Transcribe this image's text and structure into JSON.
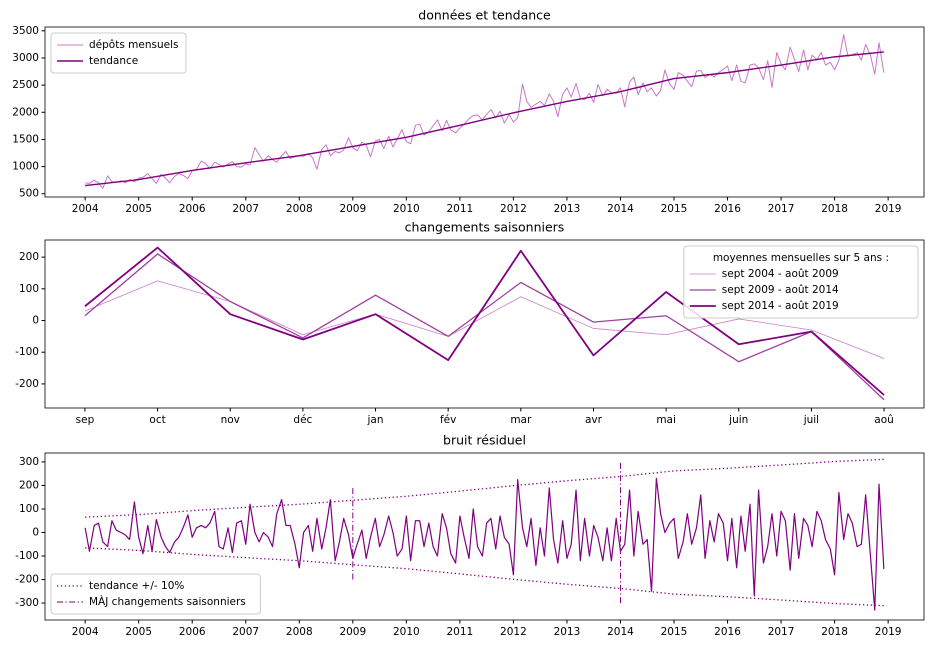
{
  "chart_data": [
    {
      "type": "line",
      "title": "données et tendance",
      "xlim": [
        2003.25,
        2019.67
      ],
      "ylim": [
        440,
        3570
      ],
      "xticks": [
        2004,
        2005,
        2006,
        2007,
        2008,
        2009,
        2010,
        2011,
        2012,
        2013,
        2014,
        2015,
        2016,
        2017,
        2018,
        2019
      ],
      "yticks": [
        500,
        1000,
        1500,
        2000,
        2500,
        3000,
        3500
      ],
      "grid": false,
      "legend": "upper left",
      "x": [
        2004,
        2004.08,
        2004.17,
        2004.25,
        2004.33,
        2004.42,
        2004.5,
        2004.58,
        2004.67,
        2004.75,
        2004.83,
        2004.92,
        2005,
        2005.08,
        2005.17,
        2005.25,
        2005.33,
        2005.42,
        2005.5,
        2005.58,
        2005.67,
        2005.75,
        2005.83,
        2005.92,
        2006,
        2006.08,
        2006.17,
        2006.25,
        2006.33,
        2006.42,
        2006.5,
        2006.58,
        2006.67,
        2006.75,
        2006.83,
        2006.92,
        2007,
        2007.08,
        2007.17,
        2007.25,
        2007.33,
        2007.42,
        2007.5,
        2007.58,
        2007.67,
        2007.75,
        2007.83,
        2007.92,
        2008,
        2008.08,
        2008.17,
        2008.25,
        2008.33,
        2008.42,
        2008.5,
        2008.58,
        2008.67,
        2008.75,
        2008.83,
        2008.92,
        2009,
        2009.08,
        2009.17,
        2009.25,
        2009.33,
        2009.42,
        2009.5,
        2009.58,
        2009.67,
        2009.75,
        2009.83,
        2009.92,
        2010,
        2010.08,
        2010.17,
        2010.25,
        2010.33,
        2010.42,
        2010.5,
        2010.58,
        2010.67,
        2010.75,
        2010.83,
        2010.92,
        2011,
        2011.08,
        2011.17,
        2011.25,
        2011.33,
        2011.42,
        2011.5,
        2011.58,
        2011.67,
        2011.75,
        2011.83,
        2011.92,
        2012,
        2012.08,
        2012.17,
        2012.25,
        2012.33,
        2012.42,
        2012.5,
        2012.58,
        2012.67,
        2012.75,
        2012.83,
        2012.92,
        2013,
        2013.08,
        2013.17,
        2013.25,
        2013.33,
        2013.42,
        2013.5,
        2013.58,
        2013.67,
        2013.75,
        2013.83,
        2013.92,
        2014,
        2014.08,
        2014.17,
        2014.25,
        2014.33,
        2014.42,
        2014.5,
        2014.58,
        2014.67,
        2014.75,
        2014.83,
        2014.92,
        2015,
        2015.08,
        2015.17,
        2015.25,
        2015.33,
        2015.42,
        2015.5,
        2015.58,
        2015.67,
        2015.75,
        2015.83,
        2015.92,
        2016,
        2016.08,
        2016.17,
        2016.25,
        2016.33,
        2016.42,
        2016.5,
        2016.58,
        2016.67,
        2016.75,
        2016.83,
        2016.92,
        2017,
        2017.08,
        2017.17,
        2017.25,
        2017.33,
        2017.42,
        2017.5,
        2017.58,
        2017.67,
        2017.75,
        2017.83,
        2017.92,
        2018,
        2018.08,
        2018.17,
        2018.25,
        2018.33,
        2018.42,
        2018.5,
        2018.58,
        2018.67,
        2018.75,
        2018.83,
        2018.92
      ],
      "series": [
        {
          "name": "dépôts mensuels",
          "color": "#c878c8",
          "values": [
            700,
            690,
            750,
            700,
            600,
            830,
            720,
            710,
            740,
            700,
            760,
            720,
            790,
            800,
            870,
            780,
            690,
            860,
            790,
            700,
            820,
            870,
            840,
            780,
            920,
            950,
            1100,
            1060,
            960,
            1080,
            1040,
            990,
            1050,
            1090,
            1000,
            990,
            1050,
            1030,
            1350,
            1220,
            1100,
            1200,
            1130,
            1080,
            1200,
            1280,
            1150,
            1180,
            1200,
            1190,
            1240,
            1160,
            950,
            1320,
            1400,
            1200,
            1280,
            1250,
            1310,
            1530,
            1350,
            1290,
            1450,
            1400,
            1180,
            1470,
            1500,
            1330,
            1560,
            1360,
            1510,
            1680,
            1460,
            1420,
            1760,
            1780,
            1580,
            1640,
            1750,
            1860,
            1660,
            1850,
            1680,
            1620,
            1710,
            1780,
            1880,
            1940,
            1950,
            1860,
            1960,
            2050,
            1900,
            2020,
            1800,
            1960,
            1820,
            1900,
            2520,
            2200,
            2090,
            2150,
            2200,
            2120,
            2340,
            2200,
            1920,
            2330,
            2450,
            2280,
            2530,
            2260,
            2230,
            2350,
            2180,
            2510,
            2300,
            2420,
            2360,
            2350,
            2450,
            2100,
            2560,
            2650,
            2320,
            2540,
            2380,
            2450,
            2300,
            2400,
            2780,
            2520,
            2420,
            2730,
            2680,
            2570,
            2470,
            2760,
            2770,
            2640,
            2700,
            2650,
            2730,
            2790,
            2850,
            2580,
            2870,
            2570,
            2540,
            2870,
            2890,
            2820,
            2600,
            2950,
            2460,
            3100,
            2890,
            2780,
            3200,
            2970,
            2750,
            3150,
            2780,
            3050,
            2970,
            3100,
            2870,
            2920,
            2780,
            2960,
            3430,
            3030,
            3060,
            3100,
            2960,
            3250,
            3050,
            2700,
            3280,
            2730
          ]
        },
        {
          "name": "tendance",
          "color": "#800080",
          "x": [
            2004,
            2005,
            2006,
            2007,
            2008,
            2009,
            2010,
            2011,
            2012,
            2013,
            2014,
            2015,
            2016,
            2017,
            2018,
            2018.92
          ],
          "values": [
            650,
            760,
            930,
            1070,
            1200,
            1370,
            1540,
            1760,
            1990,
            2200,
            2380,
            2620,
            2730,
            2870,
            3020,
            3110
          ]
        }
      ]
    },
    {
      "type": "line",
      "title": "changements saisonniers",
      "categories": [
        "sep",
        "oct",
        "nov",
        "déc",
        "jan",
        "fév",
        "mar",
        "avr",
        "mai",
        "juin",
        "juil",
        "aoû"
      ],
      "ylim": [
        -276,
        254
      ],
      "yticks": [
        -200,
        -100,
        0,
        100,
        200
      ],
      "grid": false,
      "legend": "upper right",
      "legend_title": "moyennes mensuelles sur 5 ans :",
      "series": [
        {
          "name": "sept 2004 - août 2009",
          "color": "#c880c8",
          "values": [
            30,
            125,
            60,
            -45,
            20,
            -50,
            75,
            -25,
            -45,
            5,
            -30,
            -120
          ]
        },
        {
          "name": "sept 2009 - août 2014",
          "color": "#a040a0",
          "values": [
            15,
            210,
            60,
            -55,
            80,
            -50,
            120,
            -5,
            15,
            -130,
            -35,
            -250
          ]
        },
        {
          "name": "sept 2014 - août 2019",
          "color": "#800080",
          "values": [
            45,
            230,
            20,
            -60,
            20,
            -125,
            220,
            -110,
            90,
            -75,
            -35,
            -235
          ]
        }
      ]
    },
    {
      "type": "line",
      "title": "bruit résiduel",
      "xlim": [
        2003.25,
        2019.67
      ],
      "ylim": [
        -372,
        338
      ],
      "xticks": [
        2004,
        2005,
        2006,
        2007,
        2008,
        2009,
        2010,
        2011,
        2012,
        2013,
        2014,
        2015,
        2016,
        2017,
        2018,
        2019
      ],
      "yticks": [
        -300,
        -200,
        -100,
        0,
        100,
        200,
        300
      ],
      "grid": false,
      "legend": "lower left",
      "x": [
        2004,
        2004.08,
        2004.17,
        2004.25,
        2004.33,
        2004.42,
        2004.5,
        2004.58,
        2004.67,
        2004.75,
        2004.83,
        2004.92,
        2005,
        2005.08,
        2005.17,
        2005.25,
        2005.33,
        2005.42,
        2005.5,
        2005.58,
        2005.67,
        2005.75,
        2005.83,
        2005.92,
        2006,
        2006.08,
        2006.17,
        2006.25,
        2006.33,
        2006.42,
        2006.5,
        2006.58,
        2006.67,
        2006.75,
        2006.83,
        2006.92,
        2007,
        2007.08,
        2007.17,
        2007.25,
        2007.33,
        2007.42,
        2007.5,
        2007.58,
        2007.67,
        2007.75,
        2007.83,
        2007.92,
        2008,
        2008.08,
        2008.17,
        2008.25,
        2008.33,
        2008.42,
        2008.5,
        2008.58,
        2008.67,
        2008.75,
        2008.83,
        2008.92,
        2009,
        2009.08,
        2009.17,
        2009.25,
        2009.33,
        2009.42,
        2009.5,
        2009.58,
        2009.67,
        2009.75,
        2009.83,
        2009.92,
        2010,
        2010.08,
        2010.17,
        2010.25,
        2010.33,
        2010.42,
        2010.5,
        2010.58,
        2010.67,
        2010.75,
        2010.83,
        2010.92,
        2011,
        2011.08,
        2011.17,
        2011.25,
        2011.33,
        2011.42,
        2011.5,
        2011.58,
        2011.67,
        2011.75,
        2011.83,
        2011.92,
        2012,
        2012.08,
        2012.17,
        2012.25,
        2012.33,
        2012.42,
        2012.5,
        2012.58,
        2012.67,
        2012.75,
        2012.83,
        2012.92,
        2013,
        2013.08,
        2013.17,
        2013.25,
        2013.33,
        2013.42,
        2013.5,
        2013.58,
        2013.67,
        2013.75,
        2013.83,
        2013.92,
        2014,
        2014.08,
        2014.17,
        2014.25,
        2014.33,
        2014.42,
        2014.5,
        2014.58,
        2014.67,
        2014.75,
        2014.83,
        2014.92,
        2015,
        2015.08,
        2015.17,
        2015.25,
        2015.33,
        2015.42,
        2015.5,
        2015.58,
        2015.67,
        2015.75,
        2015.83,
        2015.92,
        2016,
        2016.08,
        2016.17,
        2016.25,
        2016.33,
        2016.42,
        2016.5,
        2016.58,
        2016.67,
        2016.75,
        2016.83,
        2016.92,
        2017,
        2017.08,
        2017.17,
        2017.25,
        2017.33,
        2017.42,
        2017.5,
        2017.58,
        2017.67,
        2017.75,
        2017.83,
        2017.92,
        2018,
        2018.08,
        2018.17,
        2018.25,
        2018.33,
        2018.42,
        2018.5,
        2018.58,
        2018.67,
        2018.75,
        2018.83,
        2018.92
      ],
      "series": [
        {
          "color": "#800080",
          "values": [
            20,
            -80,
            30,
            40,
            -40,
            -60,
            50,
            10,
            0,
            -10,
            -30,
            130,
            -20,
            -90,
            30,
            -80,
            55,
            -20,
            -60,
            -85,
            -40,
            -20,
            20,
            75,
            -20,
            20,
            30,
            20,
            40,
            90,
            -60,
            -70,
            20,
            -85,
            40,
            50,
            -50,
            120,
            0,
            -40,
            0,
            -20,
            -60,
            80,
            140,
            30,
            30,
            -50,
            -150,
            0,
            30,
            -80,
            60,
            -70,
            20,
            140,
            -120,
            -40,
            60,
            -10,
            -110,
            -50,
            10,
            -110,
            -20,
            60,
            -60,
            -10,
            70,
            0,
            -100,
            -70,
            70,
            -120,
            50,
            50,
            -60,
            40,
            -60,
            -100,
            80,
            20,
            -90,
            -130,
            70,
            -20,
            -110,
            100,
            -60,
            -100,
            40,
            60,
            -70,
            70,
            -20,
            -50,
            -180,
            225,
            20,
            -60,
            60,
            -140,
            20,
            -100,
            190,
            -30,
            -130,
            50,
            -110,
            -50,
            180,
            -120,
            60,
            -100,
            30,
            -20,
            -120,
            20,
            -120,
            60,
            -80,
            -50,
            180,
            -100,
            90,
            -50,
            -30,
            -250,
            230,
            80,
            0,
            40,
            60,
            -110,
            -40,
            80,
            -50,
            20,
            160,
            -110,
            50,
            -40,
            80,
            40,
            -120,
            60,
            -150,
            70,
            -80,
            120,
            -270,
            180,
            -130,
            -60,
            80,
            -100,
            90,
            50,
            -160,
            80,
            -110,
            60,
            30,
            -60,
            90,
            50,
            -30,
            -70,
            -180,
            170,
            -30,
            80,
            40,
            -60,
            -50,
            160,
            -100,
            -330,
            205,
            -155
          ]
        }
      ],
      "band": {
        "name": "tendance +/- 10%",
        "color": "#800080",
        "x": [
          2004,
          2005,
          2006,
          2007,
          2008,
          2009,
          2010,
          2011,
          2012,
          2013,
          2014,
          2015,
          2016,
          2017,
          2018,
          2018.92
        ],
        "upper": [
          65,
          76,
          93,
          107,
          120,
          137,
          154,
          176,
          199,
          220,
          238,
          262,
          273,
          287,
          302,
          311
        ],
        "lower": [
          -65,
          -76,
          -93,
          -107,
          -120,
          -137,
          -154,
          -176,
          -199,
          -220,
          -238,
          -262,
          -273,
          -287,
          -302,
          -311
        ]
      },
      "vlines": {
        "name": "MÀJ changements saisonniers",
        "color": "#800080",
        "x": [
          2009,
          2014
        ],
        "ymin": [
          -200,
          -300
        ],
        "ymax": [
          200,
          300
        ]
      }
    }
  ]
}
